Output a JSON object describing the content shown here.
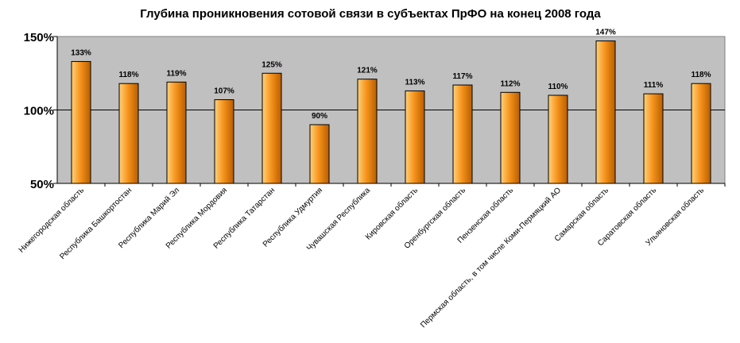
{
  "chart_data": {
    "type": "bar",
    "title": "Глубина проникновения сотовой связи в субъектах ПрФО на конец 2008 года",
    "xlabel": "",
    "ylabel": "",
    "ylim": [
      50,
      150
    ],
    "yticks": [
      "50%",
      "100%",
      "150%"
    ],
    "ytick_values": [
      50,
      100,
      150
    ],
    "grid": "horizontal line at 100%",
    "legend": "none",
    "categories": [
      "Нижегородская область",
      "Республика Башкортостан",
      "Республика Марий Эл",
      "Республика Мордовия",
      "Республика Татарстан",
      "Республика Удмуртия",
      "Чувашская Республика",
      "Кировская область",
      "Оренбургская область",
      "Пензенская область",
      "Пермская область, в том числе Коми-Пермяцкий АО",
      "Самарская область",
      "Саратовская область",
      "Ульяновская область"
    ],
    "values": [
      133,
      118,
      119,
      107,
      125,
      90,
      121,
      113,
      117,
      112,
      110,
      147,
      111,
      118
    ],
    "data_labels": [
      "133%",
      "118%",
      "119%",
      "107%",
      "125%",
      "90%",
      "121%",
      "113%",
      "117%",
      "112%",
      "110%",
      "147%",
      "111%",
      "118%"
    ],
    "colors": {
      "plot_bg": "#c0c0c0",
      "bar_light": "#ffd27a",
      "bar_mid": "#f7941d",
      "bar_dark": "#b85e00",
      "axis": "#000000"
    }
  }
}
